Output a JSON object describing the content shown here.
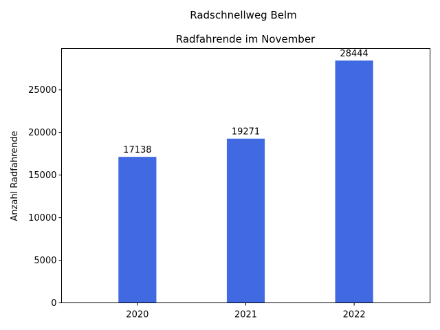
{
  "chart_data": {
    "type": "bar",
    "suptitle": "Radschnellweg Belm",
    "title": "Radfahrende im November",
    "xlabel": "",
    "ylabel": "Anzahl Radfahrende",
    "categories": [
      "2020",
      "2021",
      "2022"
    ],
    "values": [
      17138,
      19271,
      28444
    ],
    "data_labels": [
      "17138",
      "19271",
      "28444"
    ],
    "ylim": [
      0,
      29860
    ],
    "yticks": [
      0,
      5000,
      10000,
      15000,
      20000,
      25000
    ],
    "ytick_labels": [
      "0",
      "5000",
      "10000",
      "15000",
      "20000",
      "25000"
    ],
    "bar_color": "#4169e1",
    "grid": false,
    "legend": "none"
  }
}
